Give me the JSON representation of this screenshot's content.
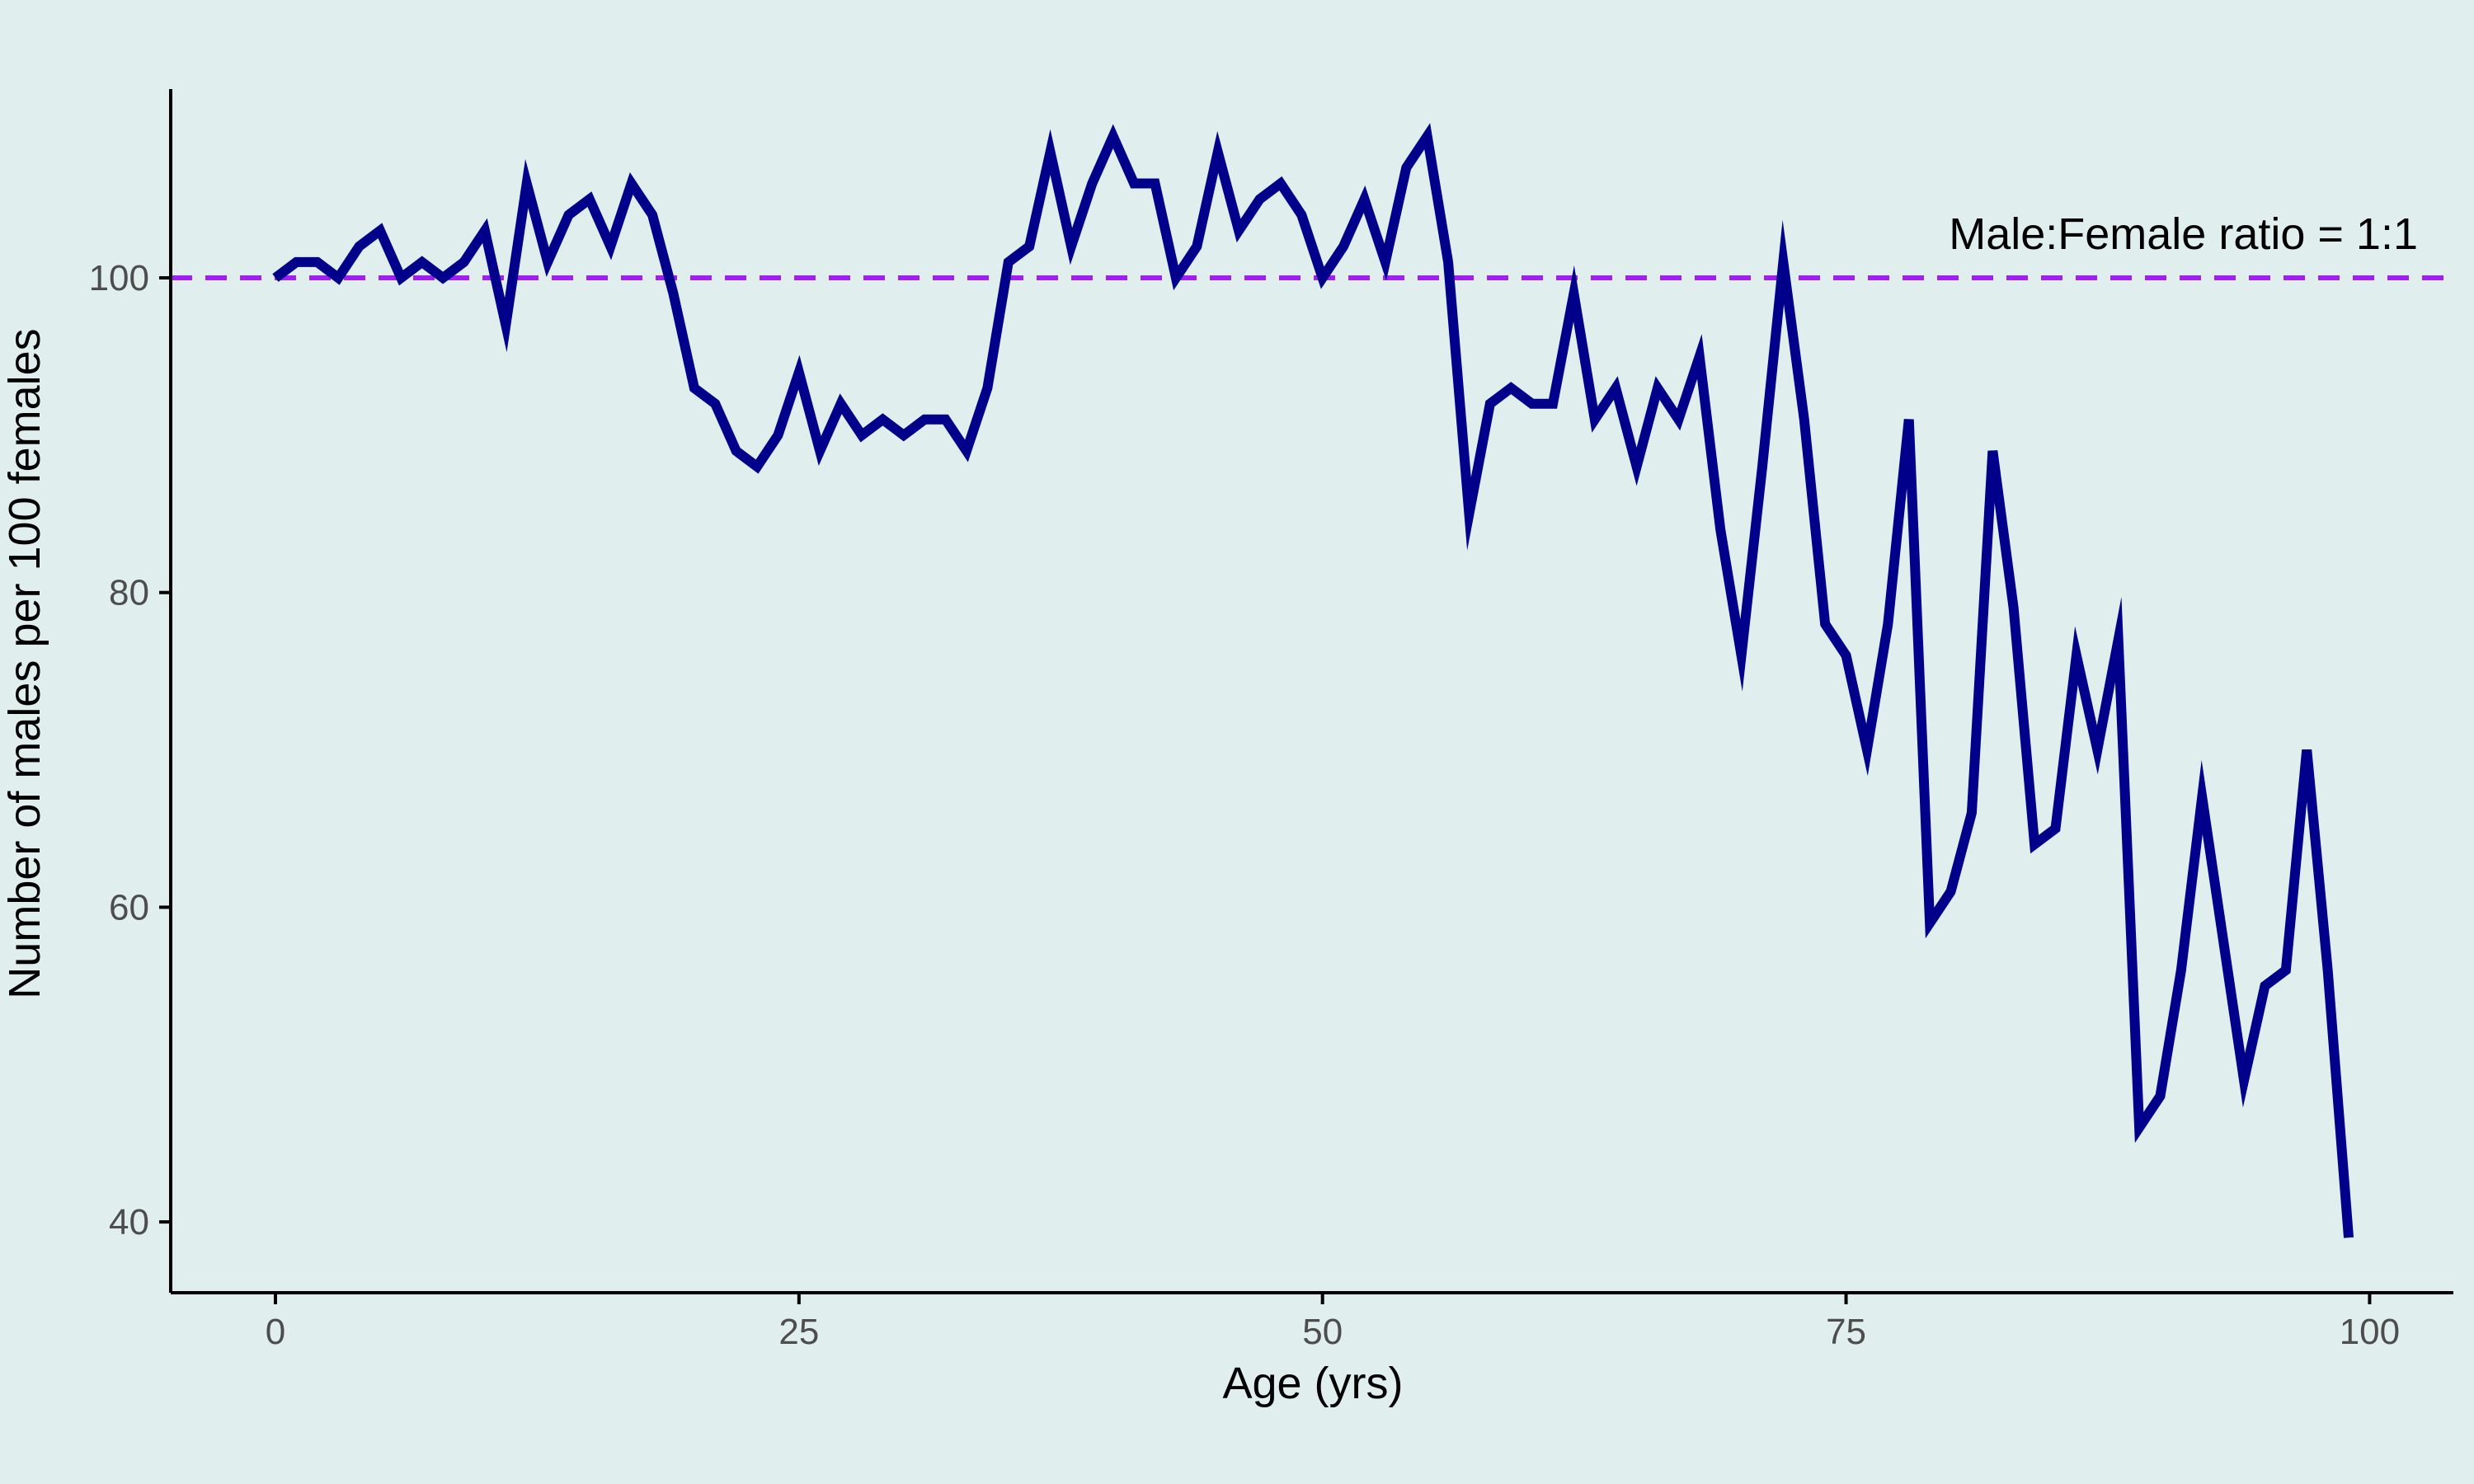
{
  "chart_data": {
    "type": "line",
    "title": "",
    "xlabel": "Age (yrs)",
    "ylabel": "Number of males per 100 females",
    "xlim": [
      -5,
      104
    ],
    "ylim": [
      35.5,
      112
    ],
    "x_ticks": [
      0,
      25,
      50,
      75,
      100
    ],
    "y_ticks": [
      40,
      60,
      80,
      100
    ],
    "grid": false,
    "legend": "none",
    "colors": {
      "background": "#e0eeed",
      "line": "#00008b",
      "reference_line": "#a020f0",
      "axis": "#000000"
    },
    "reference_line": {
      "y": 100,
      "style": "dashed",
      "label": "Male:Female ratio = 1:1"
    },
    "series": [
      {
        "x": [
          0,
          1,
          2,
          3,
          4,
          5,
          6,
          7,
          8,
          9,
          10,
          11,
          12,
          13,
          14,
          15,
          16,
          17,
          18,
          19,
          20,
          21,
          22,
          23,
          24,
          25,
          26,
          27,
          28,
          29,
          30,
          31,
          32,
          33,
          34,
          35,
          36,
          37,
          38,
          39,
          40,
          41,
          42,
          43,
          44,
          45,
          46,
          47,
          48,
          49,
          50,
          51,
          52,
          53,
          54,
          55,
          56,
          57,
          58,
          59,
          60,
          61,
          62,
          63,
          64,
          65,
          66,
          67,
          68,
          69,
          70,
          71,
          72,
          73,
          74,
          75,
          76,
          77,
          78,
          79,
          80,
          81,
          82,
          83,
          84,
          85,
          86,
          87,
          88,
          89,
          90,
          91,
          92,
          93,
          94,
          95,
          96,
          97,
          98,
          99
        ],
        "values": [
          100,
          101,
          101,
          100,
          102,
          103,
          100,
          101,
          100,
          101,
          103,
          97,
          106,
          101,
          104,
          105,
          102,
          106,
          104,
          99,
          93,
          92,
          89,
          88,
          90,
          94,
          89,
          92,
          90,
          91,
          90,
          91,
          91,
          89,
          93,
          101,
          102,
          108,
          102,
          106,
          109,
          106,
          106,
          100,
          102,
          108,
          103,
          105,
          106,
          104,
          100,
          102,
          105,
          101,
          107,
          109,
          101,
          85,
          92,
          93,
          92,
          92,
          99,
          91,
          93,
          88,
          93,
          91,
          95,
          84,
          76,
          88,
          101,
          91,
          78,
          76,
          70,
          78,
          91,
          59,
          61,
          66,
          89,
          79,
          64,
          65,
          76,
          70,
          77,
          46,
          48,
          56,
          67,
          58,
          49,
          55,
          56,
          70,
          56,
          39
        ]
      }
    ]
  }
}
